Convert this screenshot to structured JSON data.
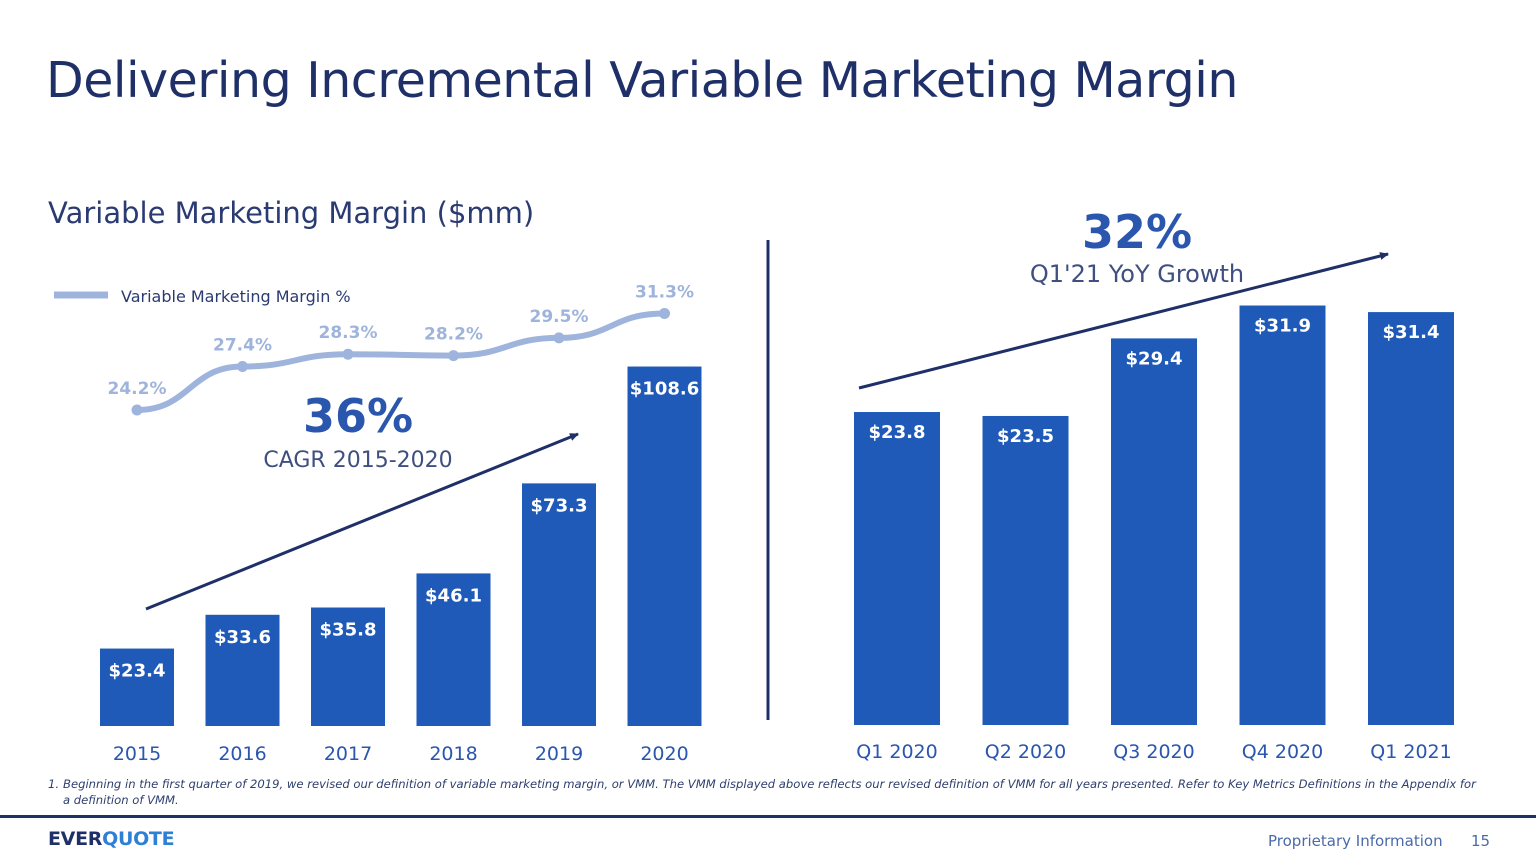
{
  "title": "Delivering Incremental Variable Marketing Margin",
  "subtitle": "Variable Marketing Margin ($mm)",
  "colors": {
    "bar": "#1f5ab8",
    "line": "#9fb4dc",
    "navy": "#1f3069",
    "accent": "#2a56ad"
  },
  "chart_data": [
    {
      "type": "bar",
      "categories": [
        "2015",
        "2016",
        "2017",
        "2018",
        "2019",
        "2020"
      ],
      "values": [
        23.4,
        33.6,
        35.8,
        46.1,
        73.3,
        108.6
      ],
      "value_labels": [
        "$23.4",
        "$33.6",
        "$35.8",
        "$46.1",
        "$73.3",
        "$108.6"
      ],
      "title": "Variable Marketing Margin ($mm)",
      "ylim": [
        0,
        110
      ],
      "series": [
        {
          "name": "Variable Marketing Margin %",
          "type": "line",
          "values": [
            24.2,
            27.4,
            28.3,
            28.2,
            29.5,
            31.3
          ],
          "value_labels": [
            "24.2%",
            "27.4%",
            "28.3%",
            "28.2%",
            "29.5%",
            "31.3%"
          ]
        }
      ],
      "legend": "top-left",
      "callout": {
        "value": "36%",
        "label": "CAGR 2015-2020"
      }
    },
    {
      "type": "bar",
      "categories": [
        "Q1 2020",
        "Q2 2020",
        "Q3 2020",
        "Q4 2020",
        "Q1 2021"
      ],
      "values": [
        23.8,
        23.5,
        29.4,
        31.9,
        31.4
      ],
      "value_labels": [
        "$23.8",
        "$23.5",
        "$29.4",
        "$31.9",
        "$31.4"
      ],
      "ylim": [
        0,
        33
      ],
      "callout": {
        "value": "32%",
        "label": "Q1'21 YoY Growth"
      }
    }
  ],
  "footnote": {
    "number": "1.",
    "text": "Beginning in the first quarter of 2019, we revised our definition of variable marketing margin, or VMM.  The VMM displayed above reflects our revised definition of VMM for all years presented. Refer to Key Metrics Definitions in the Appendix for a definition of VMM."
  },
  "footer": {
    "logo_part1": "EVER",
    "logo_part2": "QUOTE",
    "proprietary": "Proprietary Information",
    "page_number": "15"
  }
}
